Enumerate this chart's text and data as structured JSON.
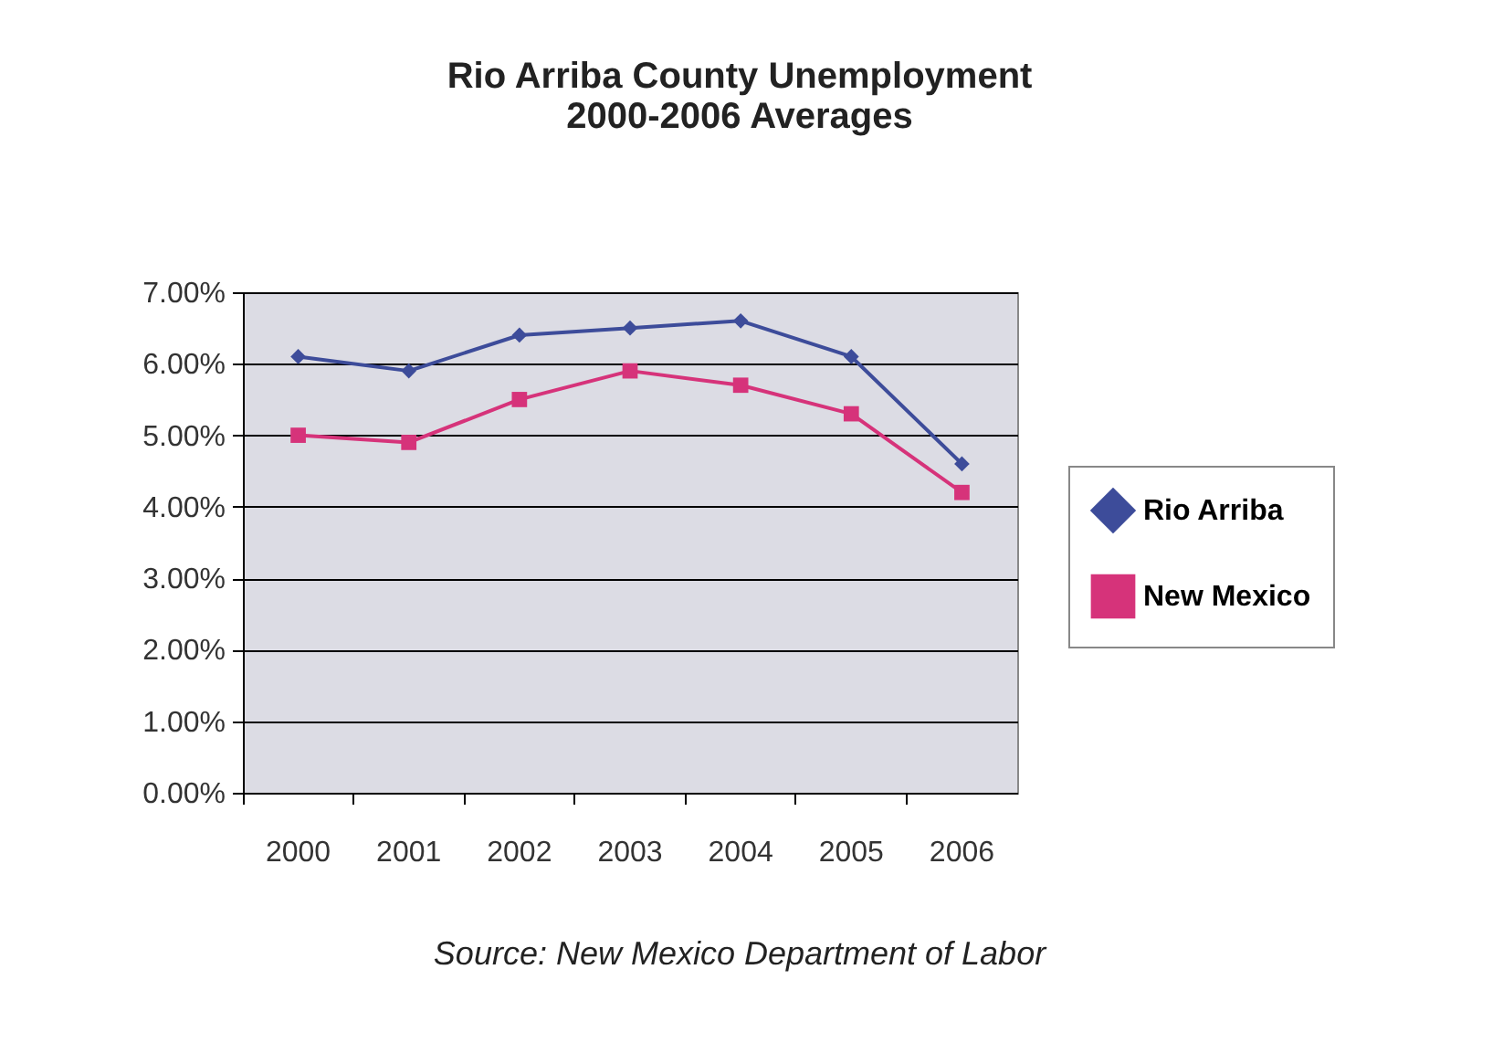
{
  "chart_data": {
    "type": "line",
    "title": [
      "Rio Arriba County Unemployment",
      "2000-2006 Averages"
    ],
    "categories": [
      "2000",
      "2001",
      "2002",
      "2003",
      "2004",
      "2005",
      "2006"
    ],
    "series": [
      {
        "name": "Rio Arriba",
        "color": "#3d4c9a",
        "marker": "diamond",
        "values": [
          6.1,
          5.9,
          6.4,
          6.5,
          6.6,
          6.1,
          4.6
        ]
      },
      {
        "name": "New Mexico",
        "color": "#d6337a",
        "marker": "square",
        "values": [
          5.0,
          4.9,
          5.5,
          5.9,
          5.7,
          5.3,
          4.2
        ]
      }
    ],
    "ylim": [
      0,
      7
    ],
    "yticks": [
      {
        "value": 0,
        "label": "0.00%"
      },
      {
        "value": 1,
        "label": "1.00%"
      },
      {
        "value": 2,
        "label": "2.00%"
      },
      {
        "value": 3,
        "label": "3.00%"
      },
      {
        "value": 4,
        "label": "4.00%"
      },
      {
        "value": 5,
        "label": "5.00%"
      },
      {
        "value": 6,
        "label": "6.00%"
      },
      {
        "value": 7,
        "label": "7.00%"
      }
    ],
    "grid": "y",
    "legend": "right",
    "line_style": "solid",
    "annotations": [
      "Source: New Mexico Department of Labor"
    ]
  }
}
